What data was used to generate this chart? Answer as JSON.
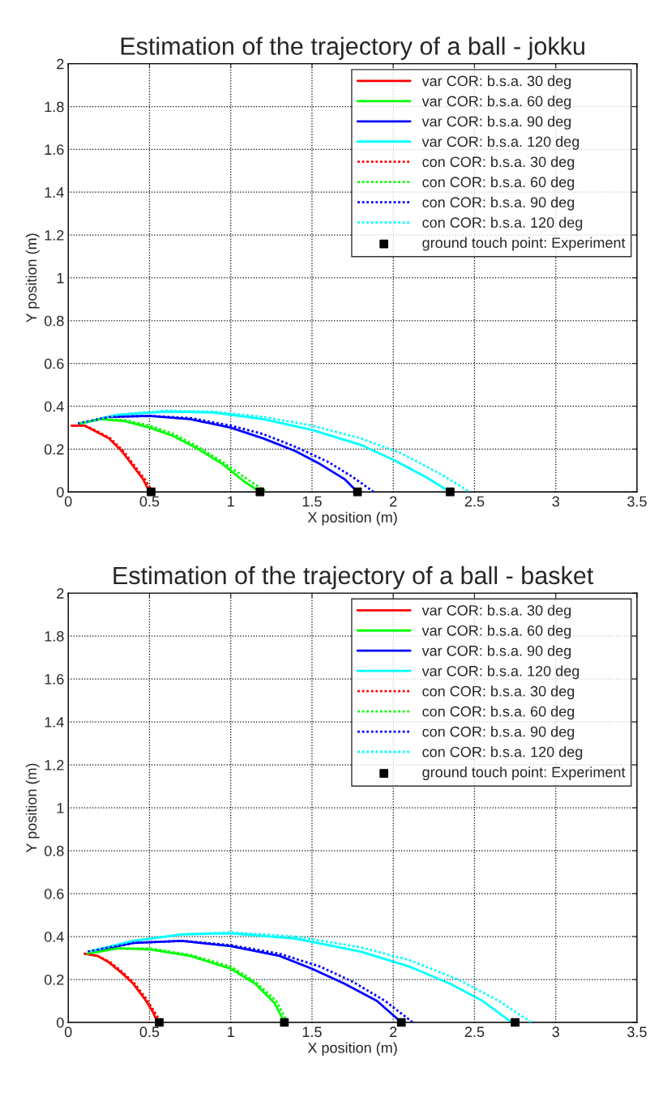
{
  "chart_data": [
    {
      "type": "line",
      "title": "Estimation of the trajectory of a ball - jokku",
      "xlabel": "X position (m)",
      "ylabel": "Y position (m)",
      "xlim": [
        0,
        3.5
      ],
      "ylim": [
        0,
        2
      ],
      "xticks": [
        0,
        0.5,
        1,
        1.5,
        2,
        2.5,
        3,
        3.5
      ],
      "yticks": [
        0,
        0.2,
        0.4,
        0.6,
        0.8,
        1,
        1.2,
        1.4,
        1.6,
        1.8,
        2
      ],
      "grid": true,
      "legend": "top right",
      "series": [
        {
          "name": "var COR: b.s.a. 30 deg",
          "color": "#ff0000",
          "line_style": "solid",
          "x": [
            0.02,
            0.1,
            0.15,
            0.25,
            0.33,
            0.4,
            0.46,
            0.5
          ],
          "values": [
            0.31,
            0.31,
            0.29,
            0.25,
            0.19,
            0.12,
            0.06,
            0
          ]
        },
        {
          "name": "var COR: b.s.a. 60 deg",
          "color": "#00ff00",
          "line_style": "solid",
          "x": [
            0.07,
            0.2,
            0.35,
            0.5,
            0.65,
            0.8,
            0.95,
            1.08,
            1.18
          ],
          "values": [
            0.32,
            0.34,
            0.33,
            0.3,
            0.26,
            0.2,
            0.13,
            0.05,
            0
          ]
        },
        {
          "name": "var COR: b.s.a. 90 deg",
          "color": "#0000ff",
          "line_style": "solid",
          "x": [
            0.08,
            0.25,
            0.5,
            0.75,
            1.0,
            1.2,
            1.4,
            1.55,
            1.7,
            1.78
          ],
          "values": [
            0.32,
            0.35,
            0.355,
            0.34,
            0.3,
            0.25,
            0.19,
            0.13,
            0.06,
            0
          ]
        },
        {
          "name": "var COR: b.s.a. 120 deg",
          "color": "#00ffff",
          "line_style": "solid",
          "x": [
            0.08,
            0.3,
            0.6,
            0.9,
            1.2,
            1.5,
            1.8,
            2.0,
            2.2,
            2.35
          ],
          "values": [
            0.32,
            0.36,
            0.375,
            0.37,
            0.34,
            0.29,
            0.22,
            0.15,
            0.07,
            0
          ]
        },
        {
          "name": "con COR: b.s.a. 30 deg",
          "color": "#ff0000",
          "line_style": "dotted",
          "x": [
            0.02,
            0.1,
            0.16,
            0.26,
            0.34,
            0.41,
            0.47,
            0.52
          ],
          "values": [
            0.31,
            0.31,
            0.29,
            0.25,
            0.19,
            0.12,
            0.06,
            0
          ]
        },
        {
          "name": "con COR: b.s.a. 60 deg",
          "color": "#00ff00",
          "line_style": "dotted",
          "x": [
            0.07,
            0.2,
            0.35,
            0.5,
            0.65,
            0.8,
            0.95,
            1.1,
            1.22
          ],
          "values": [
            0.32,
            0.34,
            0.335,
            0.31,
            0.27,
            0.21,
            0.14,
            0.06,
            0
          ]
        },
        {
          "name": "con COR: b.s.a. 90 deg",
          "color": "#0000ff",
          "line_style": "dotted",
          "x": [
            0.06,
            0.25,
            0.5,
            0.75,
            1.0,
            1.2,
            1.4,
            1.6,
            1.75,
            1.88
          ],
          "values": [
            0.32,
            0.35,
            0.355,
            0.345,
            0.31,
            0.27,
            0.21,
            0.14,
            0.07,
            0
          ]
        },
        {
          "name": "con COR: b.s.a. 120 deg",
          "color": "#00ffff",
          "line_style": "dotted",
          "x": [
            0.08,
            0.3,
            0.6,
            0.9,
            1.2,
            1.5,
            1.8,
            2.05,
            2.3,
            2.47
          ],
          "values": [
            0.32,
            0.36,
            0.38,
            0.375,
            0.35,
            0.31,
            0.25,
            0.18,
            0.08,
            0
          ]
        },
        {
          "name": "ground touch point: Experiment",
          "type": "scatter",
          "marker": "square",
          "color": "#000000",
          "x": [
            0.51,
            1.18,
            1.78,
            2.35
          ],
          "values": [
            0,
            0,
            0,
            0
          ]
        }
      ]
    },
    {
      "type": "line",
      "title": "Estimation of the trajectory of a ball - basket",
      "xlabel": "X position (m)",
      "ylabel": "Y position (m)",
      "xlim": [
        0,
        3.5
      ],
      "ylim": [
        0,
        2
      ],
      "xticks": [
        0,
        0.5,
        1,
        1.5,
        2,
        2.5,
        3,
        3.5
      ],
      "yticks": [
        0,
        0.2,
        0.4,
        0.6,
        0.8,
        1,
        1.2,
        1.4,
        1.6,
        1.8,
        2
      ],
      "grid": true,
      "legend": "top right",
      "series": [
        {
          "name": "var COR: b.s.a. 30 deg",
          "color": "#ff0000",
          "line_style": "solid",
          "x": [
            0.1,
            0.18,
            0.25,
            0.33,
            0.4,
            0.47,
            0.52,
            0.55
          ],
          "values": [
            0.32,
            0.31,
            0.28,
            0.23,
            0.18,
            0.11,
            0.05,
            0
          ]
        },
        {
          "name": "var COR: b.s.a. 60 deg",
          "color": "#00ff00",
          "line_style": "solid",
          "x": [
            0.12,
            0.3,
            0.5,
            0.75,
            1.0,
            1.15,
            1.27,
            1.33
          ],
          "values": [
            0.32,
            0.345,
            0.34,
            0.31,
            0.25,
            0.18,
            0.09,
            0
          ]
        },
        {
          "name": "var COR: b.s.a. 90 deg",
          "color": "#0000ff",
          "line_style": "solid",
          "x": [
            0.13,
            0.4,
            0.7,
            1.0,
            1.3,
            1.5,
            1.7,
            1.9,
            2.05
          ],
          "values": [
            0.33,
            0.37,
            0.38,
            0.355,
            0.31,
            0.25,
            0.18,
            0.1,
            0
          ]
        },
        {
          "name": "var COR: b.s.a. 120 deg",
          "color": "#00ffff",
          "line_style": "solid",
          "x": [
            0.13,
            0.4,
            0.7,
            1.0,
            1.4,
            1.8,
            2.1,
            2.35,
            2.55,
            2.73
          ],
          "values": [
            0.33,
            0.38,
            0.41,
            0.415,
            0.39,
            0.33,
            0.26,
            0.18,
            0.1,
            0
          ]
        },
        {
          "name": "con COR: b.s.a. 30 deg",
          "color": "#ff0000",
          "line_style": "dotted",
          "x": [
            0.1,
            0.18,
            0.26,
            0.34,
            0.41,
            0.48,
            0.53,
            0.57
          ],
          "values": [
            0.32,
            0.31,
            0.28,
            0.23,
            0.18,
            0.11,
            0.05,
            0
          ]
        },
        {
          "name": "con COR: b.s.a. 60 deg",
          "color": "#00ff00",
          "line_style": "dotted",
          "x": [
            0.12,
            0.3,
            0.5,
            0.75,
            1.0,
            1.15,
            1.28,
            1.35
          ],
          "values": [
            0.32,
            0.345,
            0.345,
            0.315,
            0.26,
            0.19,
            0.1,
            0
          ]
        },
        {
          "name": "con COR: b.s.a. 90 deg",
          "color": "#0000ff",
          "line_style": "dotted",
          "x": [
            0.12,
            0.4,
            0.7,
            1.0,
            1.3,
            1.55,
            1.75,
            1.95,
            2.12
          ],
          "values": [
            0.33,
            0.37,
            0.38,
            0.36,
            0.32,
            0.26,
            0.19,
            0.1,
            0
          ]
        },
        {
          "name": "con COR: b.s.a. 120 deg",
          "color": "#00ffff",
          "line_style": "dotted",
          "x": [
            0.13,
            0.4,
            0.7,
            1.0,
            1.4,
            1.8,
            2.1,
            2.4,
            2.65,
            2.85
          ],
          "values": [
            0.33,
            0.38,
            0.41,
            0.42,
            0.4,
            0.35,
            0.29,
            0.2,
            0.1,
            0
          ]
        },
        {
          "name": "ground touch point: Experiment",
          "type": "scatter",
          "marker": "square",
          "color": "#000000",
          "x": [
            0.56,
            1.33,
            2.05,
            2.75
          ],
          "values": [
            0,
            0,
            0,
            0
          ]
        }
      ]
    }
  ]
}
